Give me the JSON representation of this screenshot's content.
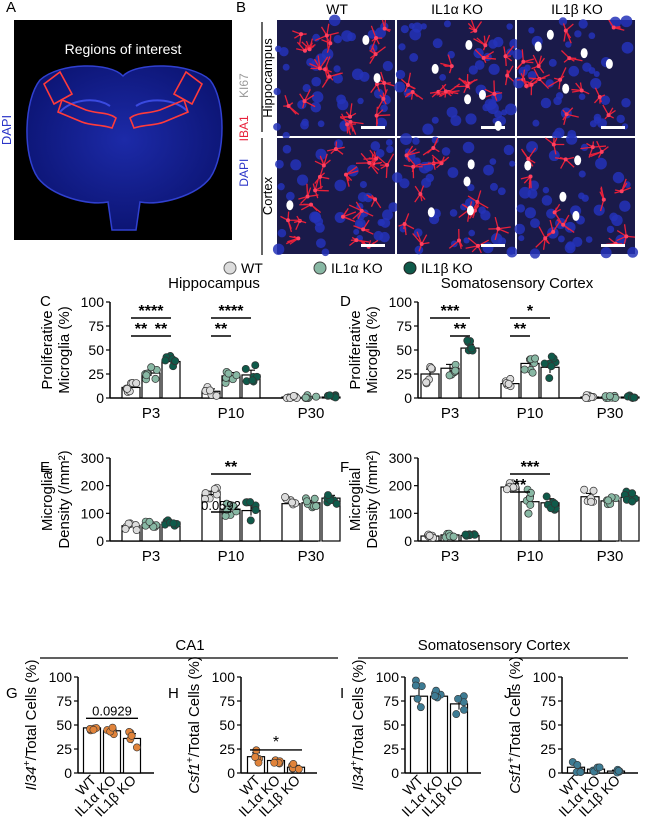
{
  "colors": {
    "wt": "#dcdcdc",
    "il1a": "#88b8a4",
    "il1b": "#0f5a4a",
    "ca1_point": "#e0833a",
    "cortex_point": "#3d7b93",
    "microscopy_bg": "#1a1a4a",
    "iba1": "#e8203a",
    "dapi": "#2b35c8"
  },
  "panel_labels": {
    "a": "A",
    "b": "B",
    "c": "C",
    "d": "D",
    "e": "E",
    "f": "F",
    "g": "G",
    "h": "H",
    "i": "I",
    "j": "J"
  },
  "panel_a": {
    "title": "Regions of interest",
    "stain_label": "DAPI"
  },
  "panel_b": {
    "columns": [
      "WT",
      "IL1α KO",
      "IL1β KO"
    ],
    "rows": [
      "Hippocampus",
      "Cortex"
    ],
    "stains": {
      "ki67": "KI67",
      "iba1": "IBA1",
      "dapi": "DAPI"
    }
  },
  "legend": [
    {
      "label": "WT",
      "color": "#dcdcdc"
    },
    {
      "label": "IL1α KO",
      "color": "#88b8a4"
    },
    {
      "label": "IL1β KO",
      "color": "#0f5a4a"
    }
  ],
  "section_titles": {
    "ca1": "CA1",
    "cortex": "Somatosensory Cortex"
  },
  "chart_data": [
    {
      "id": "C",
      "type": "bar",
      "title": "Hippocampus",
      "ylabel": [
        "Proliferative",
        "Microglia (%)"
      ],
      "categories": [
        "P3",
        "P10",
        "P30"
      ],
      "ylim": [
        0,
        100
      ],
      "yticks": [
        0,
        25,
        50,
        75,
        100
      ],
      "series": [
        {
          "name": "WT",
          "values": [
            11,
            7,
            1
          ],
          "sem": [
            2.5,
            2.5,
            0.4
          ]
        },
        {
          "name": "IL1α KO",
          "values": [
            26,
            23,
            1
          ],
          "sem": [
            3,
            3.5,
            0.4
          ]
        },
        {
          "name": "IL1β KO",
          "values": [
            38,
            24,
            1
          ],
          "sem": [
            3,
            5,
            0.4
          ]
        }
      ],
      "significance": [
        {
          "from": [
            0,
            0
          ],
          "to": [
            0,
            2
          ],
          "label": "****"
        },
        {
          "from": [
            0,
            1
          ],
          "to": [
            0,
            2
          ],
          "label": "**"
        },
        {
          "from": [
            0,
            0
          ],
          "to": [
            0,
            1
          ],
          "label": "**"
        },
        {
          "from": [
            1,
            0
          ],
          "to": [
            1,
            2
          ],
          "label": "****"
        },
        {
          "from": [
            1,
            0
          ],
          "to": [
            1,
            1
          ],
          "label": "**"
        }
      ]
    },
    {
      "id": "D",
      "type": "bar",
      "title": "Somatosensory Cortex",
      "ylabel": [
        "Proliferative",
        "Microglia (%)"
      ],
      "categories": [
        "P3",
        "P10",
        "P30"
      ],
      "ylim": [
        0,
        100
      ],
      "yticks": [
        0,
        25,
        50,
        75,
        100
      ],
      "series": [
        {
          "name": "WT",
          "values": [
            25,
            15,
            1
          ],
          "sem": [
            5,
            3,
            0.4
          ]
        },
        {
          "name": "IL1α KO",
          "values": [
            31,
            36,
            1
          ],
          "sem": [
            4,
            5,
            0.4
          ]
        },
        {
          "name": "IL1β KO",
          "values": [
            52,
            32,
            1
          ],
          "sem": [
            4,
            6,
            0.4
          ]
        }
      ],
      "significance": [
        {
          "from": [
            0,
            0
          ],
          "to": [
            0,
            2
          ],
          "label": "***"
        },
        {
          "from": [
            0,
            1
          ],
          "to": [
            0,
            2
          ],
          "label": "**"
        },
        {
          "from": [
            1,
            0
          ],
          "to": [
            1,
            2
          ],
          "label": "*"
        },
        {
          "from": [
            1,
            0
          ],
          "to": [
            1,
            1
          ],
          "label": "**"
        }
      ]
    },
    {
      "id": "E",
      "type": "bar",
      "title": "",
      "ylabel": [
        "Microglial",
        "Density (/mm²)"
      ],
      "categories": [
        "P3",
        "P10",
        "P30"
      ],
      "ylim": [
        0,
        300
      ],
      "yticks": [
        0,
        100,
        200,
        300
      ],
      "series": [
        {
          "name": "WT",
          "values": [
            55,
            168,
            135
          ],
          "sem": [
            8,
            12,
            12
          ]
        },
        {
          "name": "IL1α KO",
          "values": [
            60,
            115,
            138
          ],
          "sem": [
            8,
            12,
            8
          ]
        },
        {
          "name": "IL1β KO",
          "values": [
            68,
            110,
            155
          ],
          "sem": [
            6,
            18,
            10
          ]
        }
      ],
      "significance": [
        {
          "from": [
            1,
            0
          ],
          "to": [
            1,
            2
          ],
          "label": "**"
        },
        {
          "from": [
            1,
            0
          ],
          "to": [
            1,
            1
          ],
          "label": "0.0592"
        }
      ]
    },
    {
      "id": "F",
      "type": "bar",
      "title": "",
      "ylabel": [
        "Microglial",
        "Density (/mm²)"
      ],
      "categories": [
        "P3",
        "P10",
        "P30"
      ],
      "ylim": [
        0,
        300
      ],
      "yticks": [
        0,
        100,
        200,
        300
      ],
      "series": [
        {
          "name": "WT",
          "values": [
            18,
            195,
            160
          ],
          "sem": [
            3,
            8,
            12
          ]
        },
        {
          "name": "IL1α KO",
          "values": [
            22,
            142,
            145
          ],
          "sem": [
            4,
            20,
            6
          ]
        },
        {
          "name": "IL1β KO",
          "values": [
            20,
            138,
            158
          ],
          "sem": [
            3,
            15,
            10
          ]
        }
      ],
      "significance": [
        {
          "from": [
            1,
            0
          ],
          "to": [
            1,
            2
          ],
          "label": "***"
        },
        {
          "from": [
            1,
            0
          ],
          "to": [
            1,
            1
          ],
          "label": "**"
        }
      ]
    },
    {
      "id": "G",
      "type": "bar",
      "title": "",
      "ylabel_gene": "Il34",
      "ylabel_rest": "/Total Cells (%)",
      "categories": [
        "WT",
        "IL1α KO",
        "IL1β KO"
      ],
      "ylim": [
        0,
        100
      ],
      "yticks": [
        0,
        25,
        50,
        75,
        100
      ],
      "values": [
        47,
        44,
        36
      ],
      "sem": [
        1.5,
        2,
        5
      ],
      "significance": [
        {
          "from": 0,
          "to": 2,
          "label": "0.0929"
        }
      ]
    },
    {
      "id": "H",
      "type": "bar",
      "title": "",
      "ylabel_gene": "Csf1",
      "ylabel_rest": "/Total Cells (%)",
      "categories": [
        "WT",
        "IL1α KO",
        "IL1β KO"
      ],
      "ylim": [
        0,
        100
      ],
      "yticks": [
        0,
        25,
        50,
        75,
        100
      ],
      "values": [
        17,
        13,
        6
      ],
      "sem": [
        4,
        2,
        2
      ],
      "significance": [
        {
          "from": 0,
          "to": 2,
          "label": "*"
        }
      ]
    },
    {
      "id": "I",
      "type": "bar",
      "title": "",
      "ylabel_gene": "Il34",
      "ylabel_rest": "/Total Cells (%)",
      "categories": [
        "WT",
        "IL1α KO",
        "IL1β KO"
      ],
      "ylim": [
        0,
        100
      ],
      "yticks": [
        0,
        25,
        50,
        75,
        100
      ],
      "values": [
        80,
        80,
        72
      ],
      "sem": [
        10,
        3,
        6
      ],
      "significance": []
    },
    {
      "id": "J",
      "type": "bar",
      "title": "",
      "ylabel_gene": "Csf1",
      "ylabel_rest": "/Total Cells (%)",
      "categories": [
        "WT",
        "IL1α KO",
        "IL1β KO"
      ],
      "ylim": [
        0,
        100
      ],
      "yticks": [
        0,
        25,
        50,
        75,
        100
      ],
      "values": [
        6,
        4,
        2
      ],
      "sem": [
        3,
        1.5,
        1
      ],
      "significance": []
    }
  ]
}
